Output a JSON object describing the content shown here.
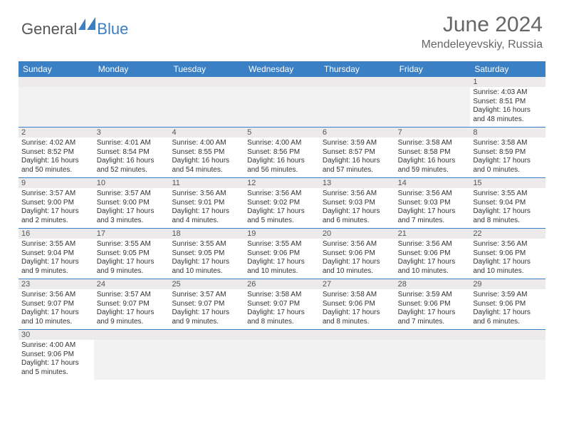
{
  "logo": {
    "text1": "General",
    "text2": "Blue"
  },
  "title": "June 2024",
  "location": "Mendeleyevskiy, Russia",
  "colors": {
    "header_bg": "#3b7fc4",
    "daynum_bg": "#eceaea",
    "row_border": "#3b7fc4",
    "text": "#333333",
    "title_color": "#666666"
  },
  "day_names": [
    "Sunday",
    "Monday",
    "Tuesday",
    "Wednesday",
    "Thursday",
    "Friday",
    "Saturday"
  ],
  "weeks": [
    [
      null,
      null,
      null,
      null,
      null,
      null,
      {
        "d": "1",
        "sr": "4:03 AM",
        "ss": "8:51 PM",
        "dl": "16 hours and 48 minutes."
      }
    ],
    [
      {
        "d": "2",
        "sr": "4:02 AM",
        "ss": "8:52 PM",
        "dl": "16 hours and 50 minutes."
      },
      {
        "d": "3",
        "sr": "4:01 AM",
        "ss": "8:54 PM",
        "dl": "16 hours and 52 minutes."
      },
      {
        "d": "4",
        "sr": "4:00 AM",
        "ss": "8:55 PM",
        "dl": "16 hours and 54 minutes."
      },
      {
        "d": "5",
        "sr": "4:00 AM",
        "ss": "8:56 PM",
        "dl": "16 hours and 56 minutes."
      },
      {
        "d": "6",
        "sr": "3:59 AM",
        "ss": "8:57 PM",
        "dl": "16 hours and 57 minutes."
      },
      {
        "d": "7",
        "sr": "3:58 AM",
        "ss": "8:58 PM",
        "dl": "16 hours and 59 minutes."
      },
      {
        "d": "8",
        "sr": "3:58 AM",
        "ss": "8:59 PM",
        "dl": "17 hours and 0 minutes."
      }
    ],
    [
      {
        "d": "9",
        "sr": "3:57 AM",
        "ss": "9:00 PM",
        "dl": "17 hours and 2 minutes."
      },
      {
        "d": "10",
        "sr": "3:57 AM",
        "ss": "9:00 PM",
        "dl": "17 hours and 3 minutes."
      },
      {
        "d": "11",
        "sr": "3:56 AM",
        "ss": "9:01 PM",
        "dl": "17 hours and 4 minutes."
      },
      {
        "d": "12",
        "sr": "3:56 AM",
        "ss": "9:02 PM",
        "dl": "17 hours and 5 minutes."
      },
      {
        "d": "13",
        "sr": "3:56 AM",
        "ss": "9:03 PM",
        "dl": "17 hours and 6 minutes."
      },
      {
        "d": "14",
        "sr": "3:56 AM",
        "ss": "9:03 PM",
        "dl": "17 hours and 7 minutes."
      },
      {
        "d": "15",
        "sr": "3:55 AM",
        "ss": "9:04 PM",
        "dl": "17 hours and 8 minutes."
      }
    ],
    [
      {
        "d": "16",
        "sr": "3:55 AM",
        "ss": "9:04 PM",
        "dl": "17 hours and 9 minutes."
      },
      {
        "d": "17",
        "sr": "3:55 AM",
        "ss": "9:05 PM",
        "dl": "17 hours and 9 minutes."
      },
      {
        "d": "18",
        "sr": "3:55 AM",
        "ss": "9:05 PM",
        "dl": "17 hours and 10 minutes."
      },
      {
        "d": "19",
        "sr": "3:55 AM",
        "ss": "9:06 PM",
        "dl": "17 hours and 10 minutes."
      },
      {
        "d": "20",
        "sr": "3:56 AM",
        "ss": "9:06 PM",
        "dl": "17 hours and 10 minutes."
      },
      {
        "d": "21",
        "sr": "3:56 AM",
        "ss": "9:06 PM",
        "dl": "17 hours and 10 minutes."
      },
      {
        "d": "22",
        "sr": "3:56 AM",
        "ss": "9:06 PM",
        "dl": "17 hours and 10 minutes."
      }
    ],
    [
      {
        "d": "23",
        "sr": "3:56 AM",
        "ss": "9:07 PM",
        "dl": "17 hours and 10 minutes."
      },
      {
        "d": "24",
        "sr": "3:57 AM",
        "ss": "9:07 PM",
        "dl": "17 hours and 9 minutes."
      },
      {
        "d": "25",
        "sr": "3:57 AM",
        "ss": "9:07 PM",
        "dl": "17 hours and 9 minutes."
      },
      {
        "d": "26",
        "sr": "3:58 AM",
        "ss": "9:07 PM",
        "dl": "17 hours and 8 minutes."
      },
      {
        "d": "27",
        "sr": "3:58 AM",
        "ss": "9:06 PM",
        "dl": "17 hours and 8 minutes."
      },
      {
        "d": "28",
        "sr": "3:59 AM",
        "ss": "9:06 PM",
        "dl": "17 hours and 7 minutes."
      },
      {
        "d": "29",
        "sr": "3:59 AM",
        "ss": "9:06 PM",
        "dl": "17 hours and 6 minutes."
      }
    ],
    [
      {
        "d": "30",
        "sr": "4:00 AM",
        "ss": "9:06 PM",
        "dl": "17 hours and 5 minutes."
      },
      null,
      null,
      null,
      null,
      null,
      null
    ]
  ],
  "labels": {
    "sunrise": "Sunrise:",
    "sunset": "Sunset:",
    "daylight": "Daylight:"
  }
}
